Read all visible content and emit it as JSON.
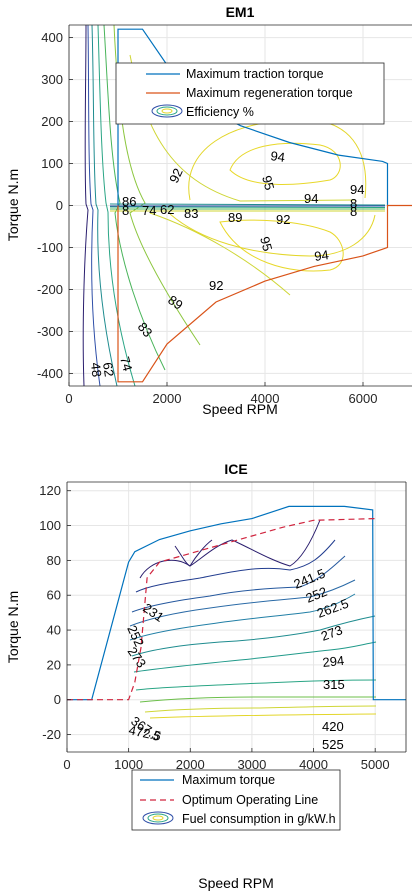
{
  "chart_data": [
    {
      "type": "contour",
      "title": "EM1",
      "xlabel": "Speed RPM",
      "ylabel": "Torque N.m",
      "xlim": [
        0,
        7000
      ],
      "ylim": [
        -430,
        430
      ],
      "xticks": [
        0,
        2000,
        4000,
        6000
      ],
      "yticks": [
        -400,
        -300,
        -200,
        -100,
        0,
        100,
        200,
        300,
        400
      ],
      "grid": true,
      "legend": {
        "placement": "top-right",
        "entries": [
          "Maximum traction torque",
          "Maximum regeneration torque",
          "Efficiency %"
        ]
      },
      "series": [
        {
          "name": "Maximum traction torque",
          "color": "#0072bd",
          "x": [
            1000,
            1000,
            1500,
            2500,
            3500,
            4500,
            5500,
            6400,
            6500,
            6500
          ],
          "y": [
            0,
            420,
            420,
            250,
            190,
            150,
            120,
            105,
            100,
            0
          ]
        },
        {
          "name": "Maximum regeneration torque",
          "color": "#d95319",
          "x": [
            1000,
            1000,
            1500,
            2000,
            3000,
            4000,
            5000,
            6000,
            6500,
            6500,
            7000
          ],
          "y": [
            0,
            -420,
            -420,
            -330,
            -230,
            -180,
            -145,
            -120,
            -100,
            0,
            0
          ]
        }
      ],
      "contour_labels": [
        "94",
        "95",
        "92",
        "94",
        "86",
        "8",
        "74",
        "62",
        "83",
        "89",
        "92",
        "94",
        "8",
        "8",
        "95",
        "94",
        "92",
        "89",
        "83",
        "74",
        "62",
        "48"
      ]
    },
    {
      "type": "contour",
      "title": "ICE",
      "xlabel": "Speed RPM",
      "ylabel": "Torque N.m",
      "xlim": [
        0,
        5500
      ],
      "ylim": [
        -30,
        125
      ],
      "xticks": [
        0,
        1000,
        2000,
        3000,
        4000,
        5000
      ],
      "yticks": [
        -20,
        0,
        20,
        40,
        60,
        80,
        100,
        120
      ],
      "grid": true,
      "legend": {
        "placement": "bottom-center",
        "entries": [
          "Maximum torque",
          "Optimum Operating Line",
          "Fuel consumption in g/kW.h"
        ]
      },
      "series": [
        {
          "name": "Maximum torque",
          "color": "#0072bd",
          "x": [
            0,
            400,
            1000,
            1100,
            1500,
            2000,
            2500,
            3000,
            3600,
            4500,
            4960,
            4970,
            5500
          ],
          "y": [
            0,
            0,
            79,
            85,
            92,
            97,
            101,
            104,
            111,
            111,
            109,
            0,
            0
          ]
        },
        {
          "name": "Optimum Operating Line",
          "color": "#d0243e",
          "x": [
            0,
            700,
            1000,
            1100,
            1200,
            1300,
            1500,
            2000,
            2500,
            3000,
            3500,
            4000,
            5000
          ],
          "y": [
            0,
            0,
            0,
            10,
            30,
            70,
            79,
            84,
            89,
            94,
            99,
            103,
            104
          ]
        }
      ],
      "contour_labels": [
        "231",
        "241.5",
        "252",
        "262.5",
        "273",
        "294",
        "315",
        "252",
        "273",
        "367.5",
        "472.5",
        "420",
        "525"
      ]
    }
  ]
}
